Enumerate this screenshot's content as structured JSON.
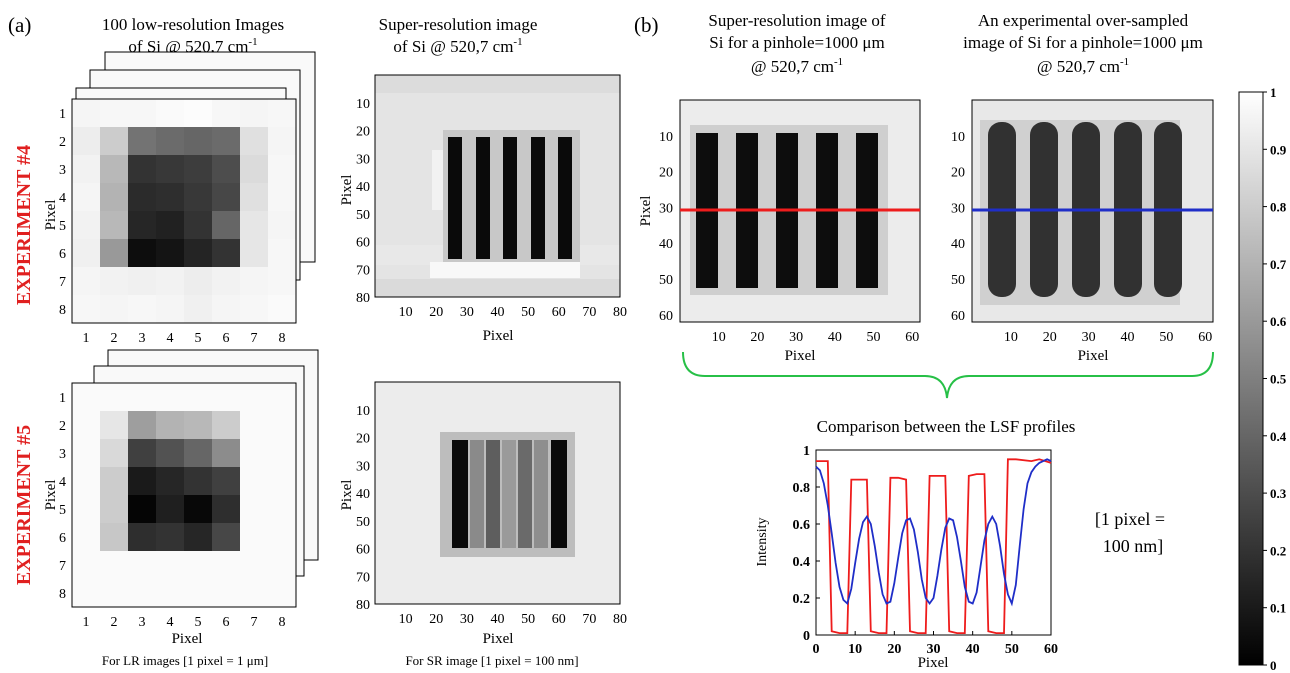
{
  "panel_a": {
    "label": "(a)",
    "lr_title": [
      "100 low-resolution Images",
      "of Si @ 520,7 cm",
      "-1"
    ],
    "sr_title": [
      "Super-resolution image",
      "of Si @ 520,7 cm",
      "-1"
    ],
    "exp4_label": "EXPERIMENT #4",
    "exp5_label": "EXPERIMENT #5",
    "lr_note": "For LR images [1 pixel = 1 μm]",
    "sr_note": "For SR image [1 pixel = 100 nm]",
    "axis_label": "Pixel",
    "lr_ticks": [
      "1",
      "2",
      "3",
      "4",
      "5",
      "6",
      "7",
      "8"
    ],
    "sr_ticks_x": [
      "10",
      "20",
      "30",
      "40",
      "50",
      "60",
      "70",
      "80"
    ],
    "sr_ticks_y": [
      "10",
      "20",
      "30",
      "40",
      "50",
      "60",
      "70",
      "80"
    ],
    "exp4_lr_grid": [
      [
        0.96,
        0.97,
        0.97,
        0.98,
        0.99,
        0.97,
        0.96,
        0.97
      ],
      [
        0.93,
        0.8,
        0.45,
        0.42,
        0.4,
        0.42,
        0.88,
        0.96
      ],
      [
        0.95,
        0.72,
        0.2,
        0.22,
        0.24,
        0.3,
        0.86,
        0.97
      ],
      [
        0.96,
        0.7,
        0.17,
        0.18,
        0.22,
        0.28,
        0.88,
        0.97
      ],
      [
        0.95,
        0.72,
        0.15,
        0.13,
        0.2,
        0.4,
        0.9,
        0.96
      ],
      [
        0.94,
        0.6,
        0.05,
        0.08,
        0.14,
        0.2,
        0.9,
        0.97
      ],
      [
        0.96,
        0.95,
        0.94,
        0.95,
        0.93,
        0.95,
        0.96,
        0.97
      ],
      [
        0.97,
        0.96,
        0.97,
        0.96,
        0.94,
        0.96,
        0.97,
        0.98
      ]
    ],
    "exp5_lr_grid": [
      [
        0.98,
        0.98,
        0.98,
        0.98,
        0.98,
        0.98,
        0.98,
        0.98
      ],
      [
        0.98,
        0.9,
        0.62,
        0.7,
        0.72,
        0.8,
        0.98,
        0.98
      ],
      [
        0.98,
        0.85,
        0.25,
        0.32,
        0.4,
        0.55,
        0.98,
        0.98
      ],
      [
        0.98,
        0.8,
        0.1,
        0.15,
        0.2,
        0.25,
        0.98,
        0.98
      ],
      [
        0.98,
        0.8,
        0.02,
        0.12,
        0.03,
        0.18,
        0.98,
        0.98
      ],
      [
        0.98,
        0.78,
        0.18,
        0.2,
        0.15,
        0.28,
        0.98,
        0.98
      ],
      [
        0.98,
        0.98,
        0.98,
        0.98,
        0.98,
        0.98,
        0.98,
        0.98
      ],
      [
        0.98,
        0.98,
        0.98,
        0.98,
        0.98,
        0.98,
        0.98,
        0.98
      ]
    ]
  },
  "panel_b": {
    "label": "(b)",
    "sr_title": [
      "Super-resolution image of",
      "Si for a pinhole=1000 μm",
      "@ 520,7 cm",
      "-1"
    ],
    "exp_title": [
      "An experimental over-sampled",
      "image of Si for a pinhole=1000 μm",
      "@ 520,7 cm",
      "-1"
    ],
    "axis_label": "Pixel",
    "ticks_x": [
      "10",
      "20",
      "30",
      "40",
      "50",
      "60"
    ],
    "ticks_y": [
      "10",
      "20",
      "30",
      "40",
      "50",
      "60"
    ],
    "colors": {
      "red_line": "#ee1c1c",
      "blue_line": "#1f2ec8",
      "brace": "#27c047",
      "exp_label": "#e02020"
    },
    "pixel_scale_note": [
      "[1 pixel =",
      "100 nm]"
    ]
  },
  "colorbar": {
    "ticks": [
      "0",
      "0.1",
      "0.2",
      "0.3",
      "0.4",
      "0.5",
      "0.6",
      "0.7",
      "0.8",
      "0.9",
      "1"
    ]
  },
  "chart_data": {
    "type": "line",
    "title": "Comparison between the LSF profiles",
    "xlabel": "Pixel",
    "ylabel": "Intensity",
    "xlim": [
      0,
      60
    ],
    "ylim": [
      0,
      1
    ],
    "xticks": [
      "0",
      "10",
      "20",
      "30",
      "40",
      "50",
      "60"
    ],
    "yticks": [
      "0",
      "0.2",
      "0.4",
      "0.6",
      "0.8",
      "1"
    ],
    "series": [
      {
        "color": "#ee1c1c",
        "x": [
          0,
          3,
          4,
          6,
          8,
          9,
          11,
          13,
          14,
          16,
          18,
          19,
          21,
          23,
          24,
          26,
          28,
          29,
          31,
          33,
          34,
          36,
          38,
          39,
          41,
          43,
          44,
          46,
          48,
          49,
          51,
          55,
          57,
          60
        ],
        "y": [
          0.94,
          0.94,
          0.02,
          0.01,
          0.01,
          0.84,
          0.84,
          0.84,
          0.02,
          0.01,
          0.01,
          0.85,
          0.85,
          0.84,
          0.02,
          0.01,
          0.01,
          0.86,
          0.86,
          0.86,
          0.02,
          0.01,
          0.01,
          0.86,
          0.87,
          0.87,
          0.02,
          0.01,
          0.01,
          0.95,
          0.95,
          0.94,
          0.95,
          0.93
        ]
      },
      {
        "color": "#1f2ec8",
        "x": [
          0,
          1,
          2,
          3,
          4,
          5,
          6,
          7,
          8,
          9,
          10,
          11,
          12,
          13,
          14,
          15,
          16,
          17,
          18,
          19,
          20,
          21,
          22,
          23,
          24,
          25,
          26,
          27,
          28,
          29,
          30,
          31,
          32,
          33,
          34,
          35,
          36,
          37,
          38,
          39,
          40,
          41,
          42,
          43,
          44,
          45,
          46,
          47,
          48,
          49,
          50,
          51,
          52,
          53,
          54,
          55,
          56,
          57,
          58,
          59,
          60
        ],
        "y": [
          0.91,
          0.89,
          0.82,
          0.7,
          0.55,
          0.39,
          0.26,
          0.19,
          0.17,
          0.25,
          0.39,
          0.52,
          0.61,
          0.64,
          0.6,
          0.48,
          0.34,
          0.22,
          0.17,
          0.18,
          0.28,
          0.42,
          0.55,
          0.62,
          0.63,
          0.57,
          0.45,
          0.3,
          0.2,
          0.17,
          0.2,
          0.32,
          0.46,
          0.58,
          0.63,
          0.62,
          0.53,
          0.4,
          0.26,
          0.18,
          0.17,
          0.23,
          0.37,
          0.51,
          0.6,
          0.64,
          0.6,
          0.48,
          0.33,
          0.22,
          0.17,
          0.27,
          0.48,
          0.68,
          0.82,
          0.88,
          0.91,
          0.93,
          0.94,
          0.95,
          0.94
        ]
      }
    ]
  }
}
